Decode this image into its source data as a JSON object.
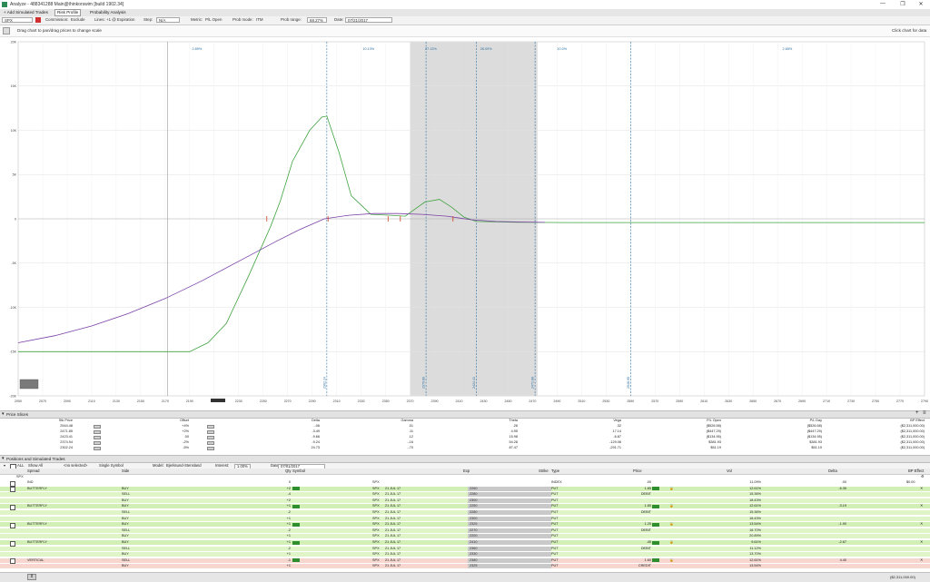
{
  "window": {
    "title": "Analyze - 488341288 Main@thinkorswim [build 1902.34]",
    "min": "—",
    "restore": "❐",
    "close": "✕"
  },
  "tabs": [
    {
      "label": "+ Add Simulated Trades"
    },
    {
      "label": "Risk Profile"
    },
    {
      "label": "Probability Analysis"
    }
  ],
  "toolbar": {
    "symbol": "SPX",
    "commission_label": "Commission:",
    "commission_value": "Exclude",
    "lines_label": "Lines:",
    "lines_value": "+1 @ Expiration",
    "step_label": "Step:",
    "step_value": "N/A",
    "metric_label": "Metric:",
    "metric_value": "P/L Open",
    "prob_mode_label": "Prob mode:",
    "prob_mode_value": "ITM",
    "prob_range_label": "Prob range:",
    "prob_range_value": "68.27%",
    "date_label": "Date:",
    "date_value": "07/21/2017"
  },
  "hints": {
    "drag": "Drag chart to pan/drag prices to change scale",
    "click": "Click chart for data"
  },
  "chart_data": {
    "type": "line",
    "xlabel": "",
    "ylabel": "",
    "xlim": [
      2050,
      2790
    ],
    "ylim": [
      -20000,
      20000
    ],
    "y_ticks": [
      {
        "v": 20000,
        "label": "20K"
      },
      {
        "v": 15000,
        "label": "15K"
      },
      {
        "v": 10000,
        "label": "10K"
      },
      {
        "v": 5000,
        "label": "5K"
      },
      {
        "v": 0,
        "label": "0"
      },
      {
        "v": -5000,
        "label": "-5K"
      },
      {
        "v": -10000,
        "label": "-10K"
      },
      {
        "v": -15000,
        "label": "-15K"
      },
      {
        "v": -20000,
        "label": "-20K"
      }
    ],
    "x_ticks": [
      2050,
      2070,
      2090,
      2110,
      2130,
      2150,
      2170,
      2190,
      2210,
      2230,
      2250,
      2270,
      2290,
      2310,
      2330,
      2350,
      2370,
      2390,
      2410,
      2430,
      2450,
      2470,
      2490,
      2510,
      2530,
      2550,
      2570,
      2590,
      2610,
      2630,
      2650,
      2670,
      2690,
      2710,
      2730,
      2750,
      2770,
      2790
    ],
    "shaded_range": [
      2370,
      2474
    ],
    "prob_labels": [
      {
        "x": 2196,
        "text": "2.89%"
      },
      {
        "x": 2336,
        "text": "10.13%"
      },
      {
        "x": 2387,
        "text": "27.13%"
      },
      {
        "x": 2432,
        "text": "26.09%"
      },
      {
        "x": 2494,
        "text": "10.0%"
      },
      {
        "x": 2678,
        "text": "2.65%"
      }
    ],
    "vlines": [
      {
        "x": 2172,
        "label": "",
        "color": "#999999",
        "dash": false
      },
      {
        "x": 2302,
        "label": "2302.24",
        "color": "#2a6fa0",
        "dash": true
      },
      {
        "x": 2383,
        "label": "2379.86",
        "color": "#2a6fa0",
        "dash": true
      },
      {
        "x": 2424,
        "label": "2424.41",
        "color": "#2a6fa0",
        "dash": true
      },
      {
        "x": 2472,
        "label": "2471.88",
        "color": "#2a6fa0",
        "dash": true
      },
      {
        "x": 2550,
        "label": "2548.95",
        "color": "#2a6fa0",
        "dash": true
      }
    ],
    "series": [
      {
        "color": "#3fa23f",
        "x": [
          2050,
          2120,
          2190,
          2205,
          2220,
          2238,
          2256,
          2264,
          2274,
          2288,
          2298,
          2302,
          2312,
          2322,
          2338,
          2354,
          2366,
          2372,
          2382,
          2394,
          2404,
          2414,
          2424,
          2440,
          2460,
          2500,
          2560,
          2650,
          2790
        ],
        "y": [
          -15000,
          -15000,
          -15000,
          -14000,
          -11800,
          -6500,
          -900,
          2000,
          6500,
          10000,
          11500,
          11600,
          7500,
          2600,
          500,
          400,
          300,
          900,
          1900,
          2200,
          1300,
          200,
          -300,
          -350,
          -400,
          -420,
          -420,
          -420,
          -420
        ]
      },
      {
        "color": "#7a3fa6",
        "x": [
          2050,
          2080,
          2110,
          2140,
          2170,
          2200,
          2230,
          2260,
          2280,
          2300,
          2320,
          2340,
          2360,
          2380,
          2400,
          2420,
          2440,
          2460,
          2480
        ],
        "y": [
          -14000,
          -13200,
          -12100,
          -10700,
          -9000,
          -7000,
          -4800,
          -2600,
          -1200,
          0,
          400,
          600,
          600,
          500,
          300,
          -100,
          -300,
          -360,
          -400
        ]
      }
    ],
    "markers_x": [
      2253,
      2303,
      2352,
      2362,
      2405
    ],
    "grid": true,
    "legend": "none"
  },
  "price_slices": {
    "title": "Price Slices",
    "headers": [
      "Stk Price",
      "Offset",
      "Delta",
      "Gamma",
      "Theta",
      "Vega",
      "P/L Open",
      "P/L Day",
      "BP Effect"
    ],
    "rows": [
      [
        "2544.48",
        "+4%",
        "-.06",
        ".01",
        ".26",
        ".32",
        "($526.58)",
        "($526.58)",
        "($2,311,000.00)"
      ],
      [
        "2471.85",
        "+2%",
        "-3.49",
        ".11",
        "4.95",
        "17.14",
        "($447.29)",
        "($447.29)",
        "($2,311,000.00)"
      ],
      [
        "2423.41",
        ".00",
        "-9.66",
        ".12",
        "15.98",
        "-6.87",
        "($134.95)",
        "($134.95)",
        "($2,311,000.00)"
      ],
      [
        "2374.94",
        "-2%",
        "-9.24",
        "-.16",
        "54.28",
        "-129.06",
        "$381.93",
        "$381.93",
        "($2,311,000.00)"
      ],
      [
        "2302.24",
        "-5%",
        "24.73",
        "-.70",
        "87.47",
        "-291.71",
        "$51.19",
        "$51.19",
        "($2,311,000.00)"
      ]
    ]
  },
  "positions": {
    "title": "Positions and Simulated Trades",
    "filter_all": "ALL",
    "show_all": "Show All",
    "no_selected": "<no selected>",
    "single_symbol": "Single Symbol",
    "model_label": "Model:",
    "model_value": "Bjerksund-Stensland",
    "interest_label": "Interest:",
    "interest_value": "1.00%",
    "date_label": "Date:",
    "date_value": "07/01/2017",
    "headers": [
      "Spread",
      "Side",
      "Qty",
      "Symbol",
      "Exp",
      "Strike",
      "Type",
      "Price",
      "Vol",
      "Delta",
      "BP Effect"
    ],
    "group": "SPX",
    "rows": [
      {
        "spread": "IND",
        "side": "",
        "qty": "0",
        "symbol": "SPX",
        "exp": "",
        "strike": "",
        "type": "INDEX",
        "price": ".00",
        "vol": "11.09%",
        "delta": ".00",
        "bp": "$0.00",
        "style": "white"
      },
      {
        "spread": "BUTTERFLY",
        "side": "BUY",
        "qty": "+2",
        "symbol": "SPX",
        "exp": "21 JUL 17",
        "strike": "2260",
        "type": "PUT",
        "price": "1.85",
        "vol": "12.61%",
        "delta": "-6.35",
        "bp": "",
        "style": "grn2"
      },
      {
        "spread": "",
        "side": "SELL",
        "qty": "-4",
        "symbol": "SPX",
        "exp": "21 JUL 17",
        "strike": "2280",
        "type": "PUT",
        "price": "DEBIT",
        "vol": "15.36%",
        "delta": "",
        "bp": "",
        "style": "grn"
      },
      {
        "spread": "",
        "side": "BUY",
        "qty": "+2",
        "symbol": "SPX",
        "exp": "21 JUL 17",
        "strike": "2300",
        "type": "PUT",
        "price": "",
        "vol": "18.43%",
        "delta": "",
        "bp": "",
        "style": "grn"
      },
      {
        "spread": "BUTTERFLY",
        "side": "BUY",
        "qty": "+1",
        "symbol": "SPX",
        "exp": "21 JUL 17",
        "strike": "2250",
        "type": "PUT",
        "price": "1.80",
        "vol": "12.61%",
        "delta": "-3.19",
        "bp": "",
        "style": "grn2"
      },
      {
        "spread": "",
        "side": "SELL",
        "qty": "-2",
        "symbol": "SPX",
        "exp": "21 JUL 17",
        "strike": "2280",
        "type": "PUT",
        "price": "DEBIT",
        "vol": "15.36%",
        "delta": "",
        "bp": "",
        "style": "grn"
      },
      {
        "spread": "",
        "side": "BUY",
        "qty": "+1",
        "symbol": "SPX",
        "exp": "21 JUL 17",
        "strike": "2300",
        "type": "PUT",
        "price": "",
        "vol": "18.43%",
        "delta": "",
        "bp": "",
        "style": "grn"
      },
      {
        "spread": "BUTTERFLY",
        "side": "BUY",
        "qty": "+1",
        "symbol": "SPX",
        "exp": "21 JUL 17",
        "strike": "2325",
        "type": "PUT",
        "price": "1.25",
        "vol": "13.54%",
        "delta": "-1.90",
        "bp": "",
        "style": "grn2"
      },
      {
        "spread": "",
        "side": "SELL",
        "qty": "-2",
        "symbol": "SPX",
        "exp": "21 JUL 17",
        "strike": "2270",
        "type": "PUT",
        "price": "DEBIT",
        "vol": "16.70%",
        "delta": "",
        "bp": "",
        "style": "grn"
      },
      {
        "spread": "",
        "side": "BUY",
        "qty": "+1",
        "symbol": "SPX",
        "exp": "21 JUL 17",
        "strike": "2200",
        "type": "PUT",
        "price": "",
        "vol": "20.89%",
        "delta": "",
        "bp": "",
        "style": "grn"
      },
      {
        "spread": "BUTTERFLY",
        "side": "BUY",
        "qty": "+1",
        "symbol": "SPX",
        "exp": "21 JUL 17",
        "strike": "2410",
        "type": "PUT",
        "price": ".45",
        "vol": "9.61%",
        "delta": "-2.67",
        "bp": "",
        "style": "grn2"
      },
      {
        "spread": "",
        "side": "SELL",
        "qty": "-2",
        "symbol": "SPX",
        "exp": "21 JUL 17",
        "strike": "2360",
        "type": "PUT",
        "price": "DEBIT",
        "vol": "11.12%",
        "delta": "",
        "bp": "",
        "style": "grn"
      },
      {
        "spread": "",
        "side": "BUY",
        "qty": "+1",
        "symbol": "SPX",
        "exp": "21 JUL 17",
        "strike": "2330",
        "type": "PUT",
        "price": "",
        "vol": "13.70%",
        "delta": "",
        "bp": "",
        "style": "grn"
      },
      {
        "spread": "VERTICAL",
        "side": "SELL",
        "qty": "-1",
        "symbol": "SPX",
        "exp": "21 JUL 17",
        "strike": "2380",
        "type": "PUT",
        "price": "1.60",
        "vol": "12.61%",
        "delta": "4.40",
        "bp": "",
        "style": "red"
      },
      {
        "spread": "",
        "side": "BUY",
        "qty": "+1",
        "symbol": "SPX",
        "exp": "21 JUL 17",
        "strike": "2325",
        "type": "PUT",
        "price": "CREDIT",
        "vol": "13.54%",
        "delta": "",
        "bp": "",
        "style": "red"
      }
    ],
    "total_bp": "($2,311,000.00)"
  },
  "colors": {
    "green_line": "#3fa23f",
    "purple_line": "#7a3fa6",
    "shade": "#dcdcdc",
    "grid": "#e2e2e2",
    "vline": "#2a6fa0",
    "marker": "#d04020"
  }
}
